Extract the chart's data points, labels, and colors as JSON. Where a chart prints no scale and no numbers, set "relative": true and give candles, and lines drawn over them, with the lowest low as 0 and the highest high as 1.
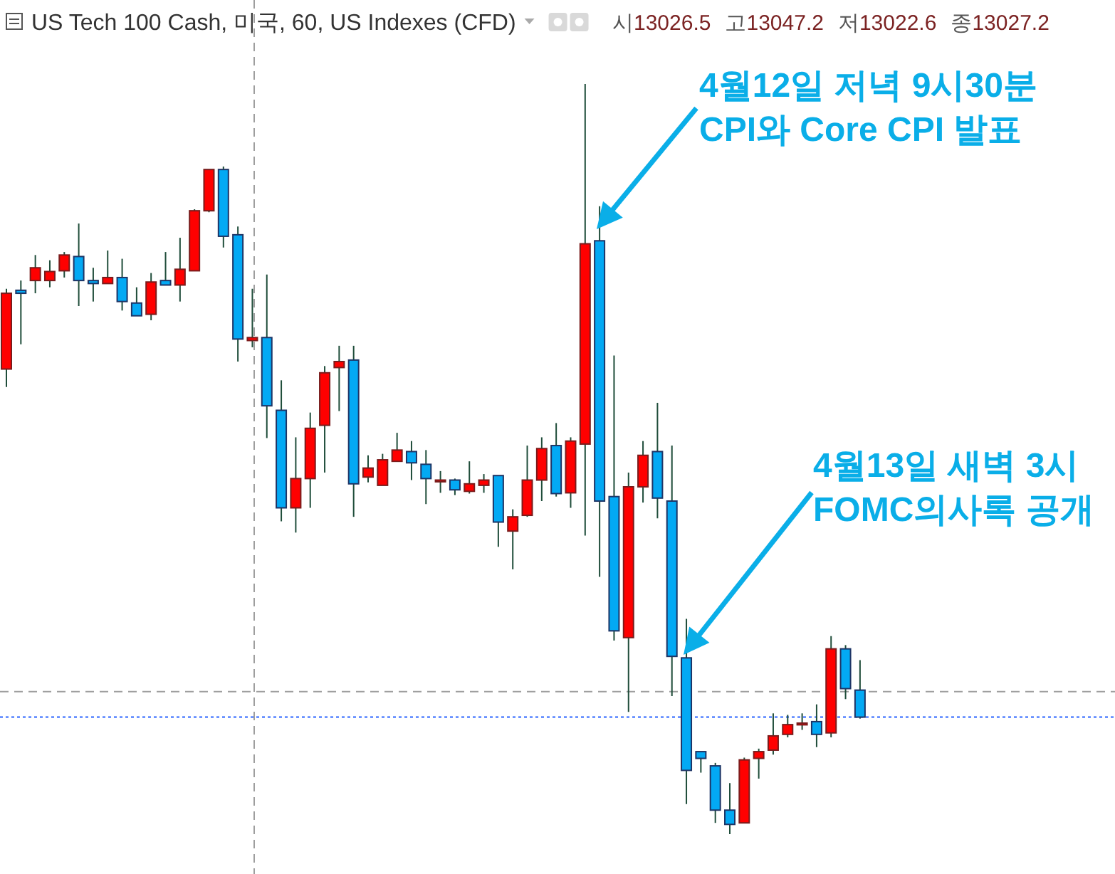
{
  "chart_data": {
    "type": "candlestick",
    "relative": true,
    "title": "US Tech 100 Cash, 미국, 60, US Indexes (CFD)",
    "subtitle": "시13026.5 고13047.2 저13022.6 종13027.2",
    "annotations": [
      "4월12일 저녁 9시30분\nCPI와 Core CPI 발표",
      "4월13일 새벽 3시\nFOMC의사록 공개"
    ],
    "categories": [
      null,
      null,
      null,
      null,
      null,
      null,
      null,
      null,
      null,
      null,
      null,
      null,
      null,
      null,
      null,
      null,
      null,
      null,
      null,
      null,
      null,
      null,
      null,
      null,
      null,
      null,
      null,
      null,
      null,
      null,
      null,
      null,
      null,
      null,
      null,
      null,
      null,
      null,
      null,
      null,
      null,
      null,
      null,
      null,
      null,
      null,
      null,
      null,
      null,
      null,
      null,
      null,
      null,
      null,
      null,
      null,
      null,
      null,
      null,
      null
    ],
    "ohlc": [
      [
        0.62,
        0.727,
        0.596,
        0.721
      ],
      [
        0.725,
        0.738,
        0.653,
        0.721
      ],
      [
        0.738,
        0.772,
        0.721,
        0.755
      ],
      [
        0.738,
        0.765,
        0.729,
        0.75
      ],
      [
        0.751,
        0.776,
        0.742,
        0.772
      ],
      [
        0.77,
        0.814,
        0.704,
        0.738
      ],
      [
        0.738,
        0.755,
        0.71,
        0.734
      ],
      [
        0.734,
        0.778,
        0.734,
        0.742
      ],
      [
        0.742,
        0.767,
        0.698,
        0.71
      ],
      [
        0.708,
        0.729,
        0.691,
        0.691
      ],
      [
        0.693,
        0.748,
        0.685,
        0.736
      ],
      [
        0.738,
        0.776,
        0.732,
        0.732
      ],
      [
        0.732,
        0.795,
        0.71,
        0.753
      ],
      [
        0.751,
        0.833,
        0.751,
        0.831
      ],
      [
        0.831,
        0.886,
        0.829,
        0.886
      ],
      [
        0.886,
        0.89,
        0.782,
        0.797
      ],
      [
        0.799,
        0.81,
        0.63,
        0.66
      ],
      [
        0.658,
        0.727,
        0.649,
        0.662
      ],
      [
        0.662,
        0.746,
        0.528,
        0.571
      ],
      [
        0.565,
        0.605,
        0.417,
        0.435
      ],
      [
        0.435,
        0.529,
        0.402,
        0.474
      ],
      [
        0.474,
        0.562,
        0.435,
        0.541
      ],
      [
        0.545,
        0.624,
        0.482,
        0.615
      ],
      [
        0.622,
        0.651,
        0.564,
        0.63
      ],
      [
        0.632,
        0.651,
        0.423,
        0.467
      ],
      [
        0.476,
        0.505,
        0.469,
        0.488
      ],
      [
        0.465,
        0.507,
        0.465,
        0.499
      ],
      [
        0.497,
        0.535,
        0.497,
        0.512
      ],
      [
        0.51,
        0.524,
        0.472,
        0.495
      ],
      [
        0.493,
        0.512,
        0.44,
        0.474
      ],
      [
        0.471,
        0.484,
        0.455,
        0.472
      ],
      [
        0.472,
        0.474,
        0.452,
        0.459
      ],
      [
        0.457,
        0.497,
        0.454,
        0.467
      ],
      [
        0.465,
        0.48,
        0.455,
        0.472
      ],
      [
        0.478,
        0.478,
        0.383,
        0.416
      ],
      [
        0.404,
        0.433,
        0.353,
        0.423
      ],
      [
        0.425,
        0.518,
        0.423,
        0.472
      ],
      [
        0.472,
        0.529,
        0.444,
        0.514
      ],
      [
        0.518,
        0.548,
        0.45,
        0.454
      ],
      [
        0.455,
        0.529,
        0.435,
        0.524
      ],
      [
        0.52,
        1.0,
        0.398,
        0.787
      ],
      [
        0.791,
        0.837,
        0.343,
        0.444
      ],
      [
        0.45,
        0.638,
        0.258,
        0.271
      ],
      [
        0.262,
        0.482,
        0.163,
        0.463
      ],
      [
        0.463,
        0.524,
        0.442,
        0.505
      ],
      [
        0.51,
        0.575,
        0.421,
        0.448
      ],
      [
        0.444,
        0.518,
        0.184,
        0.237
      ],
      [
        0.235,
        0.287,
        0.04,
        0.085
      ],
      [
        0.11,
        0.11,
        0.082,
        0.101
      ],
      [
        0.091,
        0.095,
        0.015,
        0.032
      ],
      [
        0.032,
        0.068,
        0,
        0.013
      ],
      [
        0.015,
        0.102,
        0.015,
        0.099
      ],
      [
        0.101,
        0.114,
        0.074,
        0.11
      ],
      [
        0.112,
        0.161,
        0.106,
        0.131
      ],
      [
        0.133,
        0.159,
        0.129,
        0.146
      ],
      [
        0.147,
        0.161,
        0.139,
        0.148
      ],
      [
        0.15,
        0.173,
        0.116,
        0.133
      ],
      [
        0.135,
        0.264,
        0.129,
        0.247
      ],
      [
        0.247,
        0.252,
        0.18,
        0.194
      ],
      [
        0.192,
        0.232,
        0.154,
        0.156
      ]
    ],
    "ref_lines": [
      {
        "axis": "y",
        "value": 0.19,
        "color": "#9e9e9e",
        "line_style": "dashed"
      },
      {
        "axis": "y",
        "value": 0.156,
        "color": "#2962ff",
        "line_style": "dotted"
      }
    ]
  }
}
